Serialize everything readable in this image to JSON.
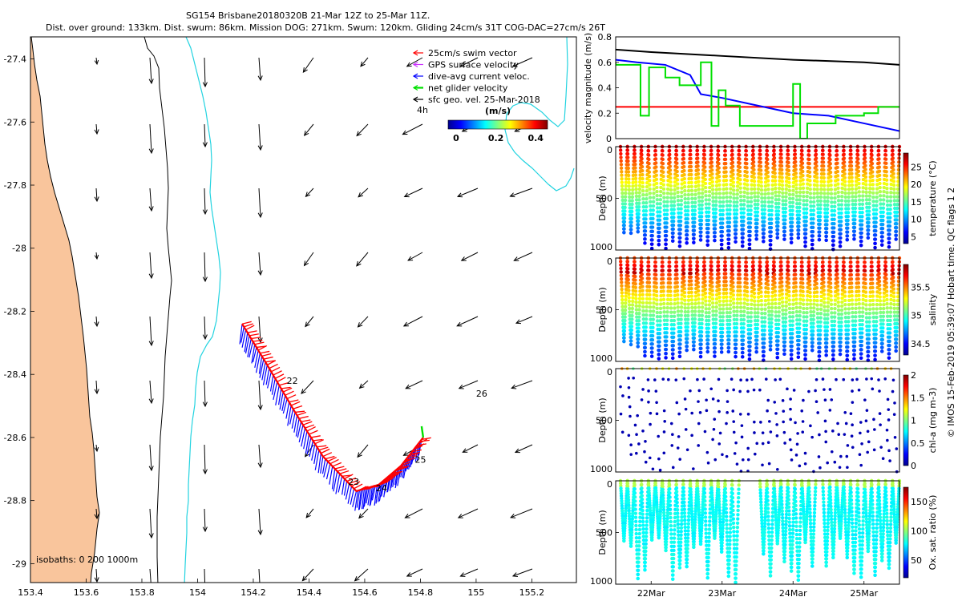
{
  "title": {
    "line1": "SG154 Brisbane20180320B 21-Mar 12Z to 25-Mar 11Z.",
    "line2": "Dist. over ground: 133km. Dist. swum: 86km. Mission DOG: 271km. Swum: 120km. Gliding 24cm/s 31T COG-DAC=27cm/s 26T"
  },
  "side_label": "© IMOS 15-Feb-2019 05:39:07 Hobart time. QC flags 1  2",
  "colors": {
    "land": "#F9C59C",
    "coast": "#000000",
    "isobath200": "#000000",
    "isobath1000": "#22D3E0",
    "swim": "#FF0000",
    "gps": "#CC33FF",
    "dac": "#0000FF",
    "net": "#00E000",
    "sfc": "#000000"
  },
  "chart_data": [
    {
      "type": "map",
      "name": "glider track and velocity map",
      "x_ticks": [
        "153.4",
        "153.6",
        "153.8",
        "154",
        "154.2",
        "154.4",
        "154.6",
        "154.8",
        "155",
        "155.2"
      ],
      "x_tick_values": [
        153.4,
        153.6,
        153.8,
        154.0,
        154.2,
        154.4,
        154.6,
        154.8,
        155.0,
        155.2
      ],
      "y_ticks": [
        "-27.4",
        "-27.6",
        "-27.8",
        "-28",
        "-28.2",
        "-28.4",
        "-28.6",
        "-28.8",
        "-29"
      ],
      "y_tick_values": [
        -27.4,
        -27.6,
        -27.8,
        -28.0,
        -28.2,
        -28.4,
        -28.6,
        -28.8,
        -29.0
      ],
      "xlim": [
        153.4,
        155.36
      ],
      "ylim": [
        -29.06,
        -27.33
      ],
      "legend": [
        {
          "label": "25cm/s swim vector",
          "color": "#FF0000"
        },
        {
          "label": "GPS surface velocity",
          "color": "#CC33FF"
        },
        {
          "label": "dive-avg current veloc.",
          "color": "#0000FF"
        },
        {
          "label": "net glider velocity",
          "color": "#00E000"
        },
        {
          "label": "sfc geo. vel. 25-Mar-2018",
          "color": "#000000"
        }
      ],
      "colorbar": {
        "title": "(m/s)",
        "ticks": [
          "0",
          "0.2",
          "0.4"
        ],
        "tick_values": [
          0,
          0.2,
          0.4
        ],
        "range": [
          0,
          0.5
        ],
        "note": "4h"
      },
      "isobath_label": "isobaths: 0   200  1000m",
      "track": {
        "lon": [
          154.16,
          154.25,
          154.35,
          154.45,
          154.57,
          154.65,
          154.73,
          154.81
        ],
        "lat": [
          -28.24,
          -28.37,
          -28.52,
          -28.66,
          -28.77,
          -28.75,
          -28.69,
          -28.6
        ]
      },
      "track_labels": [
        {
          "text": "22",
          "lon": 154.32,
          "lat": -28.43
        },
        {
          "text": "23",
          "lon": 154.54,
          "lat": -28.75
        },
        {
          "text": "24",
          "lon": 154.64,
          "lat": -28.77
        },
        {
          "text": "25",
          "lon": 154.78,
          "lat": -28.68
        },
        {
          "text": "26",
          "lon": 155.0,
          "lat": -28.47
        }
      ]
    },
    {
      "type": "line",
      "name": "velocity magnitude",
      "ylabel": "velocity magnitude (m/s)",
      "y_ticks": [
        "0",
        "0.2",
        "0.4",
        "0.6",
        "0.8"
      ],
      "ylim": [
        0,
        0.8
      ],
      "xlim": [
        21.5,
        25.5
      ],
      "series": [
        {
          "name": "black",
          "color": "#000000",
          "x": [
            21.5,
            22,
            23,
            24,
            25,
            25.5
          ],
          "y": [
            0.7,
            0.68,
            0.65,
            0.62,
            0.6,
            0.58
          ]
        },
        {
          "name": "red",
          "color": "#FF0000",
          "x": [
            21.5,
            25.5
          ],
          "y": [
            0.25,
            0.25
          ]
        },
        {
          "name": "blue",
          "color": "#0000FF",
          "x": [
            21.5,
            21.8,
            22.2,
            22.55,
            22.7,
            23.0,
            23.5,
            24.0,
            24.5,
            25.0,
            25.5
          ],
          "y": [
            0.62,
            0.6,
            0.58,
            0.5,
            0.35,
            0.32,
            0.26,
            0.2,
            0.18,
            0.12,
            0.06
          ]
        },
        {
          "name": "green",
          "color": "#00E000",
          "x": [
            21.5,
            21.5,
            21.85,
            21.85,
            21.97,
            21.97,
            22.2,
            22.2,
            22.4,
            22.4,
            22.7,
            22.7,
            22.85,
            22.85,
            22.95,
            22.95,
            23.05,
            23.05,
            23.25,
            23.25,
            23.6,
            23.6,
            24.0,
            24.0,
            24.1,
            24.1,
            24.2,
            24.2,
            24.4,
            24.4,
            24.6,
            24.6,
            25.0,
            25.0,
            25.2,
            25.2,
            25.4,
            25.4,
            25.5
          ],
          "y": [
            0.6,
            0.58,
            0.58,
            0.18,
            0.18,
            0.56,
            0.56,
            0.48,
            0.48,
            0.42,
            0.42,
            0.6,
            0.6,
            0.1,
            0.1,
            0.38,
            0.38,
            0.26,
            0.26,
            0.1,
            0.1,
            0.1,
            0.1,
            0.43,
            0.43,
            0.0,
            0.0,
            0.12,
            0.12,
            0.12,
            0.12,
            0.18,
            0.18,
            0.2,
            0.2,
            0.25,
            0.25,
            0.25,
            0.25
          ]
        }
      ]
    },
    {
      "type": "scatter",
      "name": "temperature section",
      "ylabel": "Depth (m)",
      "y_ticks": [
        "0",
        "500",
        "1000"
      ],
      "ylim": [
        1000,
        0
      ],
      "colorbar_label": "temperature (°C)",
      "colorbar_ticks": [
        "5",
        "10",
        "15",
        "20",
        "25"
      ],
      "colorbar_range": [
        3,
        29
      ],
      "profiles": 40,
      "max_depth": "1000"
    },
    {
      "type": "scatter",
      "name": "salinity section",
      "ylabel": "Depth (m)",
      "y_ticks": [
        "0",
        "500",
        "1000"
      ],
      "ylim": [
        1000,
        0
      ],
      "colorbar_label": "salinity",
      "colorbar_ticks": [
        "34.5",
        "35",
        "35.5"
      ],
      "colorbar_range": [
        34.3,
        35.9
      ],
      "profiles": 40,
      "max_depth": "1000"
    },
    {
      "type": "scatter",
      "name": "chlorophyll section",
      "ylabel": "Depth (m)",
      "y_ticks": [
        "0",
        "500",
        "1000"
      ],
      "ylim": [
        1000,
        0
      ],
      "colorbar_label": "chl-a (mg m-3)",
      "colorbar_ticks": [
        "0",
        "0.5",
        "1",
        "1.5",
        "2"
      ],
      "colorbar_range": [
        0,
        2
      ],
      "profiles": 40,
      "max_depth": "1000"
    },
    {
      "type": "scatter",
      "name": "oxygen section",
      "ylabel": "Depth (m)",
      "y_ticks": [
        "0",
        "500",
        "1000"
      ],
      "ylim": [
        1000,
        0
      ],
      "colorbar_label": "Ox. sat. ratio (%)",
      "colorbar_ticks": [
        "50",
        "100",
        "150"
      ],
      "colorbar_range": [
        20,
        175
      ],
      "profiles": 40,
      "max_depth": "1000",
      "x_ticks": [
        "22Mar",
        "23Mar",
        "24Mar",
        "25Mar"
      ],
      "x_tick_values": [
        22,
        23,
        24,
        25
      ]
    }
  ]
}
